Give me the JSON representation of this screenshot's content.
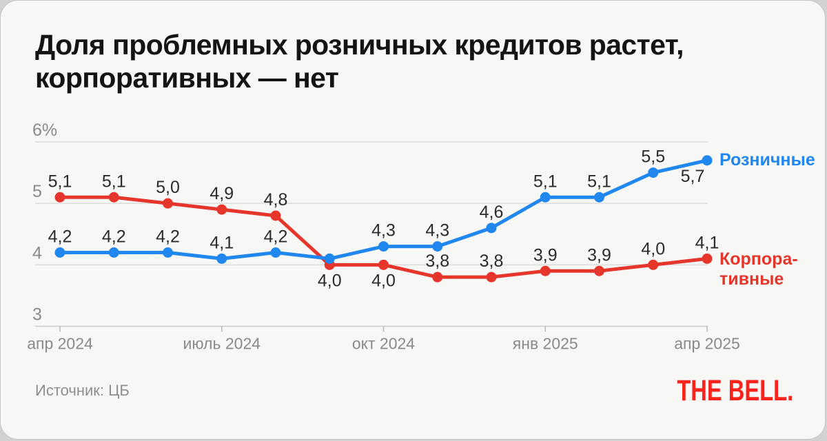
{
  "card": {
    "title_line1": "Доля проблемных розничных кредитов растет,",
    "title_line2": "корпоративных — нет",
    "source": "Источник: ЦБ",
    "logo": "THE BELL."
  },
  "colors": {
    "retail": "#1f87ed",
    "corporate": "#e6352b",
    "logo_red": "#f8231c",
    "grid": "#dbdbd9",
    "axis_line": "#c9c9c7",
    "tick": "#b9b9b7",
    "point_label": "#2b2b2b",
    "axis_text": "#8a8a8a",
    "title_text": "#141414"
  },
  "chart_data": {
    "type": "line",
    "title": "Доля проблемных розничных кредитов растет, корпоративных — нет",
    "n_points": 13,
    "ylim": [
      3,
      6
    ],
    "grid": "horizontal",
    "legend_position": "right-of-line-end",
    "y_ticks": [
      {
        "value": 6,
        "label": "6%"
      },
      {
        "value": 5,
        "label": "5"
      },
      {
        "value": 4,
        "label": "4"
      },
      {
        "value": 3,
        "label": "3"
      }
    ],
    "x_ticks": [
      {
        "index": 0,
        "label": "апр 2024"
      },
      {
        "index": 3,
        "label": "июль 2024"
      },
      {
        "index": 6,
        "label": "окт 2024"
      },
      {
        "index": 9,
        "label": "янв 2025"
      },
      {
        "index": 12,
        "label": "апр 2025"
      }
    ],
    "series": [
      {
        "name": "Розничные",
        "legend_lines": [
          "Розничные"
        ],
        "values": [
          4.2,
          4.2,
          4.2,
          4.1,
          4.2,
          4.1,
          4.3,
          4.3,
          4.6,
          5.1,
          5.1,
          5.5,
          5.7
        ],
        "point_labels": [
          "4,2",
          "4,2",
          "4,2",
          "4,1",
          "4,2",
          "",
          "4,3",
          "4,3",
          "4,6",
          "5,1",
          "5,1",
          "5,5",
          "5,7"
        ],
        "label_side": [
          "above",
          "above",
          "above",
          "above",
          "above",
          "",
          "above",
          "above",
          "above",
          "above",
          "above",
          "above",
          "below_left"
        ]
      },
      {
        "name": "Корпоративные",
        "legend_lines": [
          "Корпора-",
          "тивные"
        ],
        "values": [
          5.1,
          5.1,
          5.0,
          4.9,
          4.8,
          4.0,
          4.0,
          3.8,
          3.8,
          3.9,
          3.9,
          4.0,
          4.1
        ],
        "point_labels": [
          "5,1",
          "5,1",
          "5,0",
          "4,9",
          "4,8",
          "4,0",
          "4,0",
          "3,8",
          "3,8",
          "3,9",
          "3,9",
          "4,0",
          "4,1"
        ],
        "label_side": [
          "above",
          "above",
          "above",
          "above",
          "above",
          "below",
          "below",
          "above",
          "above",
          "above",
          "above",
          "above",
          "above"
        ]
      }
    ]
  }
}
